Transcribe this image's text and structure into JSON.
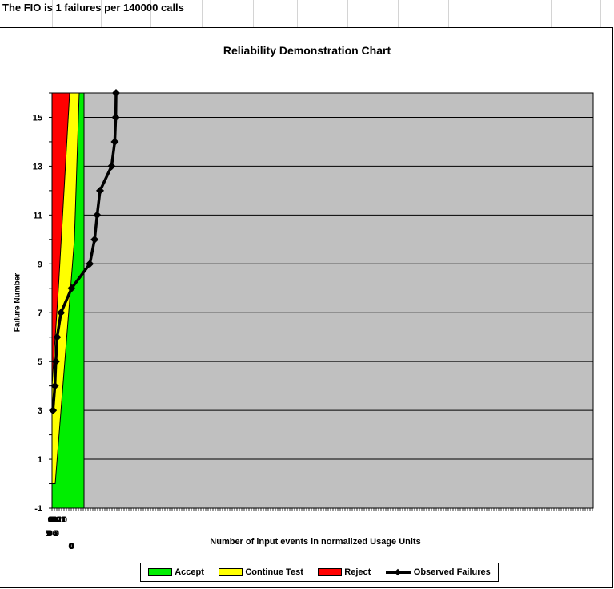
{
  "banner": "The FIO is 1 failures per 140000 calls",
  "chart_data": {
    "type": "line",
    "title": "Reliability Demonstration Chart",
    "xlabel": "Number of input events in normalized Usage Units",
    "ylabel": "Failure Number",
    "ylim": [
      -1,
      16
    ],
    "yticks": [
      -1,
      1,
      3,
      5,
      7,
      9,
      11,
      13,
      15
    ],
    "grid": true,
    "legend_position": "bottom",
    "regions": [
      {
        "name": "Accept",
        "color": "#00ee00"
      },
      {
        "name": "Continue Test",
        "color": "#ffff00"
      },
      {
        "name": "Reject",
        "color": "#ff0000"
      }
    ],
    "plot_background": "#c0c0c0",
    "series": [
      {
        "name": "Observed Failures",
        "color": "#000000",
        "x": [
          0.03,
          0.09,
          0.12,
          0.16,
          0.28,
          0.61,
          1.18,
          1.33,
          1.41,
          1.5,
          1.86,
          1.96,
          1.99,
          2.0
        ],
        "y": [
          3,
          4,
          5,
          6,
          7,
          8,
          9,
          10,
          11,
          12,
          13,
          14,
          15,
          16
        ]
      }
    ]
  },
  "legend": {
    "accept": "Accept",
    "continue": "Continue Test",
    "reject": "Reject",
    "observed": "Observed Failures"
  }
}
